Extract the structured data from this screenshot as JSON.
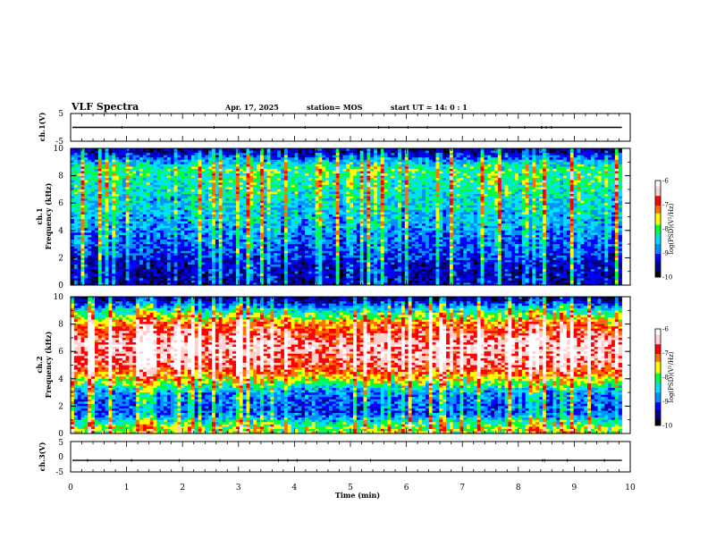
{
  "header": {
    "title": "VLF Spectra",
    "date": "Apr. 17, 2025",
    "station": "station= MOS",
    "start": "start  UT =   14: 0   : 1"
  },
  "chart_data": [
    {
      "type": "line",
      "panel": "ch1-voltage",
      "ylabel": "ch.1(V)",
      "ylim": [
        -5,
        5
      ],
      "y_ticks": [
        "5",
        "-5"
      ],
      "series_level": 0
    },
    {
      "type": "heatmap",
      "panel": "ch1-spectrogram",
      "ylabel": "ch.1\nFrequency (kHz)",
      "ylim": [
        0,
        10
      ],
      "y_ticks": [
        "0",
        "2",
        "4",
        "6",
        "8",
        "10"
      ],
      "colorbar": {
        "label": "log(PSD)(V²/Hz)",
        "ticks": [
          "-6",
          "-7",
          "-8",
          "-9",
          "-10"
        ],
        "range": [
          -10,
          -6
        ]
      },
      "intensity_profile": [
        {
          "freq": 9.8,
          "log_psd": -9.8
        },
        {
          "freq": 9.3,
          "log_psd": -9.2
        },
        {
          "freq": 8.5,
          "log_psd": -8.3
        },
        {
          "freq": 7.0,
          "log_psd": -8.5
        },
        {
          "freq": 5.0,
          "log_psd": -8.8
        },
        {
          "freq": 3.0,
          "log_psd": -9.2
        },
        {
          "freq": 1.5,
          "log_psd": -9.6
        },
        {
          "freq": 0.5,
          "log_psd": -9.7
        }
      ]
    },
    {
      "type": "heatmap",
      "panel": "ch2-spectrogram",
      "ylabel": "ch.2\nFrequency (kHz)",
      "ylim": [
        0,
        10
      ],
      "y_ticks": [
        "0",
        "2",
        "4",
        "6",
        "8",
        "10"
      ],
      "colorbar": {
        "label": "log(PSD)(V²/Hz)",
        "ticks": [
          "-6",
          "-7",
          "-8",
          "-9",
          "-10"
        ],
        "range": [
          -10,
          -6
        ]
      },
      "intensity_profile": [
        {
          "freq": 9.8,
          "log_psd": -9.8
        },
        {
          "freq": 9.0,
          "log_psd": -8.6
        },
        {
          "freq": 8.0,
          "log_psd": -7.4
        },
        {
          "freq": 6.5,
          "log_psd": -6.6
        },
        {
          "freq": 5.0,
          "log_psd": -6.9
        },
        {
          "freq": 4.0,
          "log_psd": -7.8
        },
        {
          "freq": 3.0,
          "log_psd": -9.0
        },
        {
          "freq": 1.5,
          "log_psd": -9.3
        },
        {
          "freq": 0.4,
          "log_psd": -8.0
        }
      ]
    },
    {
      "type": "line",
      "panel": "ch3-voltage",
      "ylabel": "ch.3(V)",
      "ylim": [
        -5,
        5
      ],
      "y_ticks": [
        "5",
        "0",
        "-5"
      ],
      "series_level": -1.2
    }
  ],
  "x_axis": {
    "label": "Time  (min)",
    "range": [
      0,
      10
    ],
    "ticks": [
      "0",
      "1",
      "2",
      "3",
      "4",
      "5",
      "6",
      "7",
      "8",
      "9",
      "10"
    ],
    "data_end": 9.85
  },
  "colors": {
    "colormap": [
      "#000000",
      "#000080",
      "#0000ff",
      "#0090ff",
      "#00e0ff",
      "#00ff40",
      "#ffff00",
      "#ff7000",
      "#ff0000",
      "#ffd0d0",
      "#ffffff"
    ]
  }
}
